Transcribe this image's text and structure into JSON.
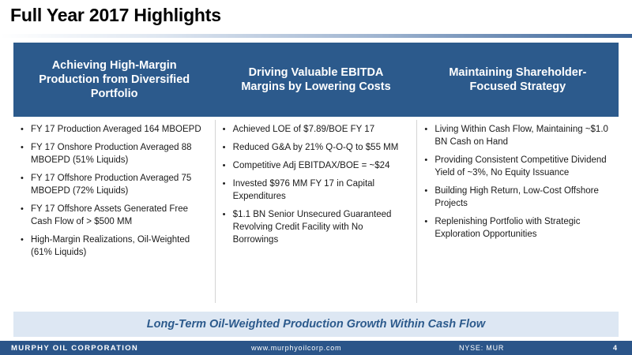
{
  "slide": {
    "title": "Full Year 2017 Highlights"
  },
  "columns": [
    {
      "heading": "Achieving High-Margin Production from Diversified Portfolio",
      "bullets": [
        "FY 17 Production Averaged 164 MBOEPD",
        "FY 17 Onshore Production Averaged 88 MBOEPD (51% Liquids)",
        "FY 17 Offshore Production Averaged 75 MBOEPD (72% Liquids)",
        "FY 17 Offshore Assets Generated Free Cash Flow of > $500 MM",
        "High-Margin Realizations, Oil-Weighted (61% Liquids)"
      ]
    },
    {
      "heading": "Driving Valuable EBITDA Margins by Lowering Costs",
      "bullets": [
        "Achieved LOE of $7.89/BOE FY 17",
        "Reduced G&A by 21% Q-O-Q to $55 MM",
        "Competitive Adj EBITDAX/BOE = ~$24",
        "Invested $976 MM FY 17 in Capital Expenditures",
        "$1.1 BN Senior Unsecured Guaranteed Revolving Credit Facility with No Borrowings"
      ]
    },
    {
      "heading": "Maintaining Shareholder-Focused Strategy",
      "bullets": [
        "Living Within Cash Flow, Maintaining ~$1.0 BN Cash on Hand",
        "Providing Consistent Competitive Dividend Yield of ~3%, No Equity Issuance",
        "Building High Return, Low-Cost Offshore Projects",
        "Replenishing Portfolio with Strategic Exploration Opportunities"
      ]
    }
  ],
  "banner": {
    "text": "Long-Term Oil-Weighted Production Growth Within Cash Flow"
  },
  "footer": {
    "company": "MURPHY OIL CORPORATION",
    "website": "www.murphyoilcorp.com",
    "ticker": "NYSE: MUR",
    "page_number": "4"
  },
  "colors": {
    "header_blue": "#2c5a8c",
    "banner_bg": "#dde7f3",
    "footer_blue": "#2b5589"
  }
}
